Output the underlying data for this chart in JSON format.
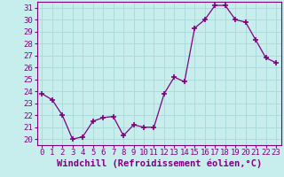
{
  "x": [
    0,
    1,
    2,
    3,
    4,
    5,
    6,
    7,
    8,
    9,
    10,
    11,
    12,
    13,
    14,
    15,
    16,
    17,
    18,
    19,
    20,
    21,
    22,
    23
  ],
  "y": [
    23.8,
    23.3,
    22.0,
    20.0,
    20.2,
    21.5,
    21.8,
    21.9,
    20.3,
    21.2,
    21.0,
    21.0,
    23.8,
    25.2,
    24.8,
    29.3,
    30.0,
    31.2,
    31.2,
    30.0,
    29.8,
    28.3,
    26.8,
    26.4
  ],
  "line_color": "#800080",
  "marker": "+",
  "marker_size": 4,
  "bg_color": "#c8eded",
  "grid_color": "#a8d8d8",
  "xlabel": "Windchill (Refroidissement éolien,°C)",
  "xlim": [
    -0.5,
    23.5
  ],
  "ylim": [
    19.5,
    31.5
  ],
  "yticks": [
    20,
    21,
    22,
    23,
    24,
    25,
    26,
    27,
    28,
    29,
    30,
    31
  ],
  "xticks": [
    0,
    1,
    2,
    3,
    4,
    5,
    6,
    7,
    8,
    9,
    10,
    11,
    12,
    13,
    14,
    15,
    16,
    17,
    18,
    19,
    20,
    21,
    22,
    23
  ],
  "tick_color": "#800080",
  "label_color": "#800080",
  "tick_fontsize": 6.5,
  "xlabel_fontsize": 7.5
}
